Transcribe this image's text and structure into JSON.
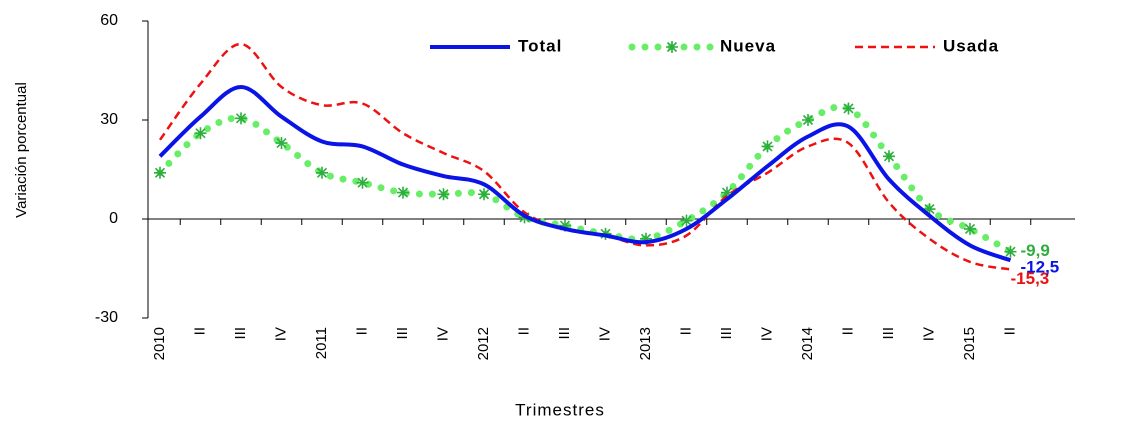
{
  "chart_data": {
    "type": "line",
    "x_label": "Trimestres",
    "y_label": "Variación porcentual",
    "categories": [
      "2010",
      "II",
      "III",
      "IV",
      "2011",
      "II",
      "III",
      "IV",
      "2012",
      "II",
      "III",
      "IV",
      "2013",
      "II",
      "III",
      "IV",
      "2014",
      "II",
      "III",
      "IV",
      "2015",
      "II"
    ],
    "ylim": [
      -30,
      60
    ],
    "yticks": [
      -30,
      0,
      30,
      60
    ],
    "legend": "top",
    "series": [
      {
        "name": "Total",
        "color": "#0a14e6",
        "style": "solid",
        "values": [
          19,
          31,
          40,
          31,
          23.5,
          22,
          16.5,
          13,
          10.5,
          1,
          -3,
          -5,
          -7,
          -3,
          6,
          16,
          25,
          28,
          12,
          1,
          -8,
          -12.5
        ],
        "value_labels": [
          null,
          null,
          null,
          null,
          null,
          null,
          null,
          null,
          null,
          null,
          null,
          null,
          null,
          null,
          null,
          null,
          null,
          null,
          null,
          null,
          null,
          "-12,5"
        ]
      },
      {
        "name": "Nueva",
        "color": "#66ee66",
        "marker_color": "#2fae3f",
        "style": "dotted",
        "values": [
          14,
          26,
          30.5,
          23,
          14,
          11,
          8,
          7.5,
          7.5,
          0.5,
          -2,
          -4.5,
          -6,
          -0.5,
          8,
          22,
          30,
          33.5,
          19,
          3,
          -3,
          -9.9
        ],
        "value_labels": [
          null,
          null,
          null,
          null,
          null,
          null,
          null,
          null,
          null,
          null,
          null,
          null,
          null,
          null,
          null,
          null,
          null,
          null,
          null,
          null,
          null,
          "-9,9"
        ]
      },
      {
        "name": "Usada",
        "color": "#ee1111",
        "style": "dashed",
        "values": [
          24,
          41,
          53,
          40,
          34.5,
          35,
          26,
          20,
          14.5,
          2,
          -3,
          -5,
          -8,
          -5,
          7,
          14,
          22,
          23,
          5,
          -6,
          -13,
          -15.3
        ],
        "value_labels": [
          null,
          null,
          null,
          null,
          null,
          null,
          null,
          null,
          null,
          null,
          null,
          null,
          null,
          null,
          null,
          null,
          null,
          null,
          null,
          null,
          null,
          "-15,3"
        ]
      }
    ]
  }
}
